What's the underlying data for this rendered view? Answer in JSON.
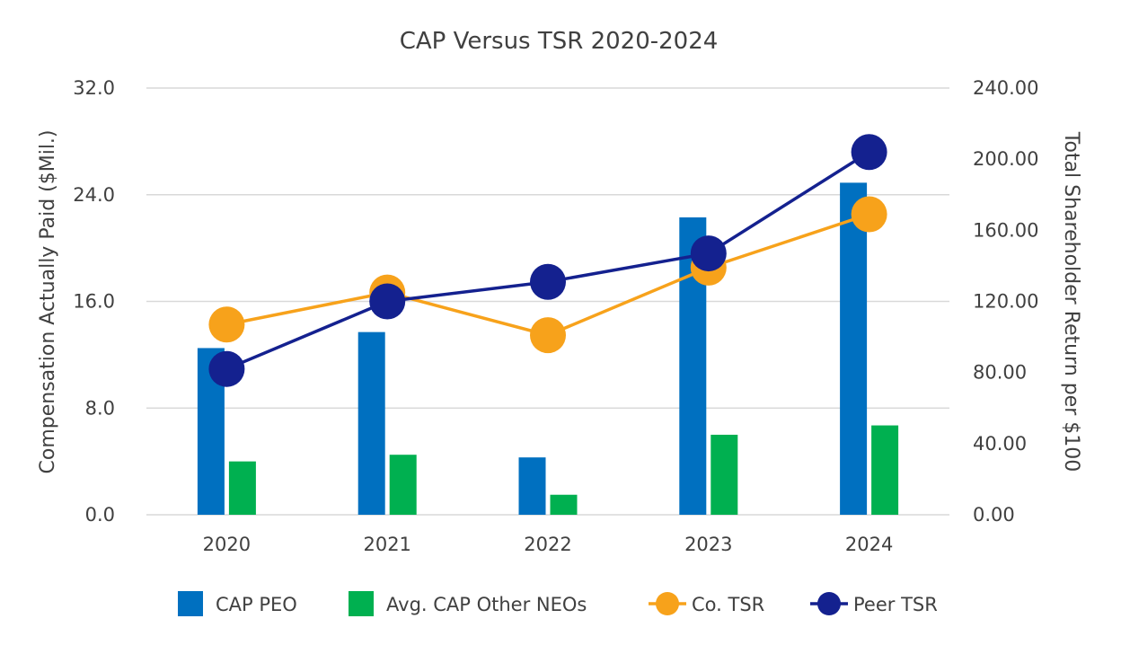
{
  "chart_data": {
    "type": "bar+line",
    "title": "CAP Versus TSR 2020-2024",
    "categories": [
      "2020",
      "2021",
      "2022",
      "2023",
      "2024"
    ],
    "y_left": {
      "label": "Compensation Actually Paid ($Mil.)",
      "min": 0,
      "max": 32,
      "ticks": [
        "0.0",
        "8.0",
        "16.0",
        "24.0",
        "32.0"
      ]
    },
    "y_right": {
      "label": "Total Shareholder Return per $100",
      "min": 0,
      "max": 240,
      "ticks": [
        "0.00",
        "40.00",
        "80.00",
        "120.00",
        "160.00",
        "200.00",
        "240.00"
      ]
    },
    "bar_series": [
      {
        "name": "CAP PEO",
        "color": "#0070c0",
        "values": [
          12.5,
          13.7,
          4.3,
          22.3,
          24.9
        ]
      },
      {
        "name": "Avg. CAP Other NEOs",
        "color": "#00b050",
        "values": [
          4.0,
          4.5,
          1.5,
          6.0,
          6.7
        ]
      }
    ],
    "line_series": [
      {
        "name": "Co. TSR",
        "color": "#f7a21b",
        "values": [
          107,
          125,
          101,
          139,
          169
        ]
      },
      {
        "name": "Peer TSR",
        "color": "#14218f",
        "values": [
          82,
          120,
          131,
          147,
          204
        ]
      }
    ],
    "grid": true,
    "legend_position": "bottom"
  }
}
